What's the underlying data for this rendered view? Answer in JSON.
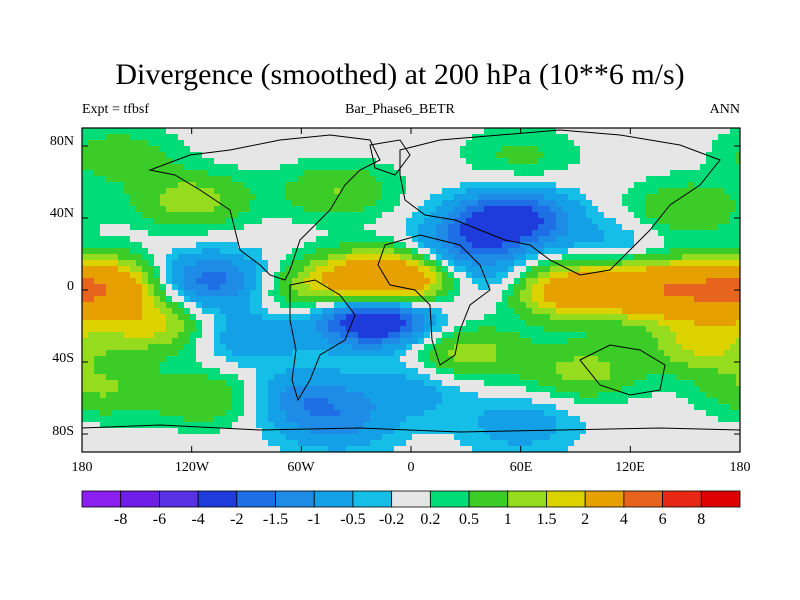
{
  "chart_data": {
    "type": "heatmap",
    "title": "Divergence (smoothed) at 200 hPa (10**6 m/s)",
    "subtitle_left": "Expt = tfbsf",
    "subtitle_center": "Bar_Phase6_BETR",
    "subtitle_right": "ANN",
    "x_ticks": [
      "180",
      "120W",
      "60W",
      "0",
      "60E",
      "120E",
      "180"
    ],
    "y_ticks": [
      "80N",
      "40N",
      "0",
      "40S",
      "80S"
    ],
    "x_range": [
      -180,
      180
    ],
    "y_range": [
      -90,
      90
    ],
    "colorbar_labels": [
      "-8",
      "-6",
      "-4",
      "-2",
      "-1.5",
      "-1",
      "-0.5",
      "-0.2",
      "0.2",
      "0.5",
      "1",
      "1.5",
      "2",
      "4",
      "6",
      "8"
    ],
    "colorbar_colors": [
      "#8c1ef0",
      "#6e1ee6",
      "#5a32e6",
      "#1e3cdc",
      "#1e6ee6",
      "#1e8ce6",
      "#14a0e6",
      "#14bee6",
      "#e6e6e6",
      "#00dc78",
      "#3ccc28",
      "#96dc1e",
      "#dcd200",
      "#e6a000",
      "#e6641e",
      "#e62814",
      "#dc0000"
    ],
    "fields": [
      {
        "lon": -170,
        "lat": 0,
        "value": 2.2
      },
      {
        "lon": -150,
        "lat": 5,
        "value": 1.4
      },
      {
        "lon": -130,
        "lat": 5,
        "value": -1.5
      },
      {
        "lon": -100,
        "lat": 5,
        "value": -1.2
      },
      {
        "lon": -60,
        "lat": 0,
        "value": 1.2
      },
      {
        "lon": -20,
        "lat": 5,
        "value": 3.0
      },
      {
        "lon": 0,
        "lat": 5,
        "value": 1.6
      },
      {
        "lon": -20,
        "lat": -15,
        "value": -3.5
      },
      {
        "lon": 30,
        "lat": 25,
        "value": -1.4
      },
      {
        "lon": 55,
        "lat": 40,
        "value": -2.5
      },
      {
        "lon": 85,
        "lat": 0,
        "value": 2.6
      },
      {
        "lon": 130,
        "lat": 0,
        "value": 2.8
      },
      {
        "lon": 165,
        "lat": 0,
        "value": 2.4
      },
      {
        "lon": 160,
        "lat": -30,
        "value": 1.6
      },
      {
        "lon": 95,
        "lat": -45,
        "value": 1.2
      },
      {
        "lon": 30,
        "lat": -35,
        "value": 1.3
      },
      {
        "lon": -140,
        "lat": -20,
        "value": 1.6
      },
      {
        "lon": -120,
        "lat": 50,
        "value": 1.3
      },
      {
        "lon": -40,
        "lat": 55,
        "value": 1.0
      },
      {
        "lon": -60,
        "lat": -60,
        "value": -1.2
      },
      {
        "lon": -170,
        "lat": -55,
        "value": 1.0
      },
      {
        "lon": 150,
        "lat": 45,
        "value": 1.0
      },
      {
        "lon": 0,
        "lat": -55,
        "value": -0.8
      },
      {
        "lon": -90,
        "lat": -25,
        "value": -1.0
      },
      {
        "lon": -110,
        "lat": -60,
        "value": 1.0
      },
      {
        "lon": 40,
        "lat": 5,
        "value": -0.8
      },
      {
        "lon": 110,
        "lat": 25,
        "value": -0.6
      },
      {
        "lon": -160,
        "lat": 75,
        "value": 0.8
      },
      {
        "lon": 60,
        "lat": 75,
        "value": 0.6
      },
      {
        "lon": -40,
        "lat": -75,
        "value": -1.0
      },
      {
        "lon": 60,
        "lat": -75,
        "value": -0.8
      }
    ]
  }
}
